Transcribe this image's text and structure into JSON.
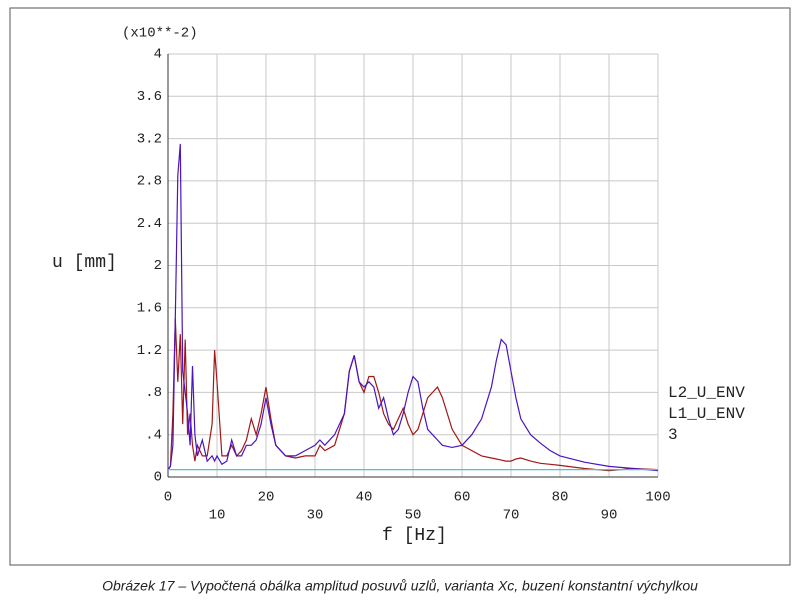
{
  "chart_data": {
    "type": "line",
    "y_multiplier": "(x10**-2)",
    "y_label": "u [mm]",
    "x_label": "f [Hz]",
    "caption": "Obrázek 17 – Vypočtená obálka amplitud posuvů uzlů, varianta Xc, buzení konstantní výchylkou",
    "x": [
      0,
      0.5,
      1,
      1.5,
      2,
      2.5,
      3,
      3.5,
      4,
      4.5,
      5,
      5.5,
      6,
      7,
      8,
      9,
      9.5,
      10,
      11,
      12,
      13,
      14,
      15,
      16,
      17,
      18,
      19,
      20,
      21,
      22,
      24,
      26,
      28,
      30,
      31,
      32,
      34,
      36,
      37,
      38,
      39,
      40,
      41,
      42,
      43,
      44,
      45,
      46,
      47,
      48,
      49,
      50,
      51,
      52,
      53,
      54,
      55,
      56,
      58,
      60,
      62,
      64,
      66,
      67,
      68,
      69,
      70,
      71,
      72,
      74,
      76,
      78,
      80,
      85,
      90,
      95,
      100
    ],
    "series": [
      {
        "name": "L2_U_ENV",
        "color": "#a01818",
        "values": [
          0.07,
          0.1,
          0.6,
          1.5,
          0.9,
          1.35,
          0.5,
          1.3,
          0.4,
          0.6,
          0.3,
          0.15,
          0.3,
          0.2,
          0.2,
          0.5,
          1.2,
          0.9,
          0.2,
          0.2,
          0.3,
          0.2,
          0.25,
          0.35,
          0.55,
          0.4,
          0.6,
          0.85,
          0.55,
          0.3,
          0.2,
          0.18,
          0.2,
          0.2,
          0.3,
          0.25,
          0.3,
          0.6,
          1.0,
          1.15,
          0.9,
          0.8,
          0.95,
          0.95,
          0.8,
          0.6,
          0.5,
          0.45,
          0.55,
          0.65,
          0.5,
          0.4,
          0.45,
          0.6,
          0.75,
          0.8,
          0.85,
          0.75,
          0.45,
          0.3,
          0.25,
          0.2,
          0.18,
          0.17,
          0.16,
          0.15,
          0.15,
          0.17,
          0.18,
          0.15,
          0.13,
          0.12,
          0.11,
          0.08,
          0.06,
          0.08,
          0.07
        ]
      },
      {
        "name": "L1_U_ENV",
        "color": "#4a14c0",
        "values": [
          0.07,
          0.1,
          0.3,
          1.5,
          2.85,
          3.15,
          1.0,
          0.8,
          0.6,
          0.3,
          1.05,
          0.4,
          0.2,
          0.35,
          0.15,
          0.2,
          0.15,
          0.2,
          0.12,
          0.15,
          0.35,
          0.2,
          0.2,
          0.3,
          0.3,
          0.35,
          0.5,
          0.75,
          0.5,
          0.3,
          0.2,
          0.2,
          0.25,
          0.3,
          0.35,
          0.3,
          0.4,
          0.6,
          1.0,
          1.15,
          0.9,
          0.85,
          0.9,
          0.85,
          0.65,
          0.75,
          0.55,
          0.4,
          0.45,
          0.6,
          0.8,
          0.95,
          0.9,
          0.65,
          0.45,
          0.4,
          0.35,
          0.3,
          0.28,
          0.3,
          0.4,
          0.55,
          0.85,
          1.1,
          1.3,
          1.25,
          1.0,
          0.75,
          0.55,
          0.4,
          0.32,
          0.25,
          0.2,
          0.14,
          0.1,
          0.08,
          0.06
        ]
      },
      {
        "name": "3",
        "color": "#40c8d0",
        "x": [
          0,
          100
        ],
        "values": [
          0.07,
          0.07
        ]
      }
    ],
    "xlim": [
      0,
      100
    ],
    "xticks": [
      0,
      10,
      20,
      30,
      40,
      50,
      60,
      70,
      80,
      90,
      100
    ],
    "ylim": [
      0,
      4
    ],
    "yticks": [
      0,
      {
        "value": 0.4,
        "label": ".4"
      },
      {
        "value": 0.8,
        "label": ".8"
      },
      1.2,
      1.6,
      2,
      2.4,
      2.8,
      3.2,
      3.6,
      4
    ],
    "grid": true
  }
}
